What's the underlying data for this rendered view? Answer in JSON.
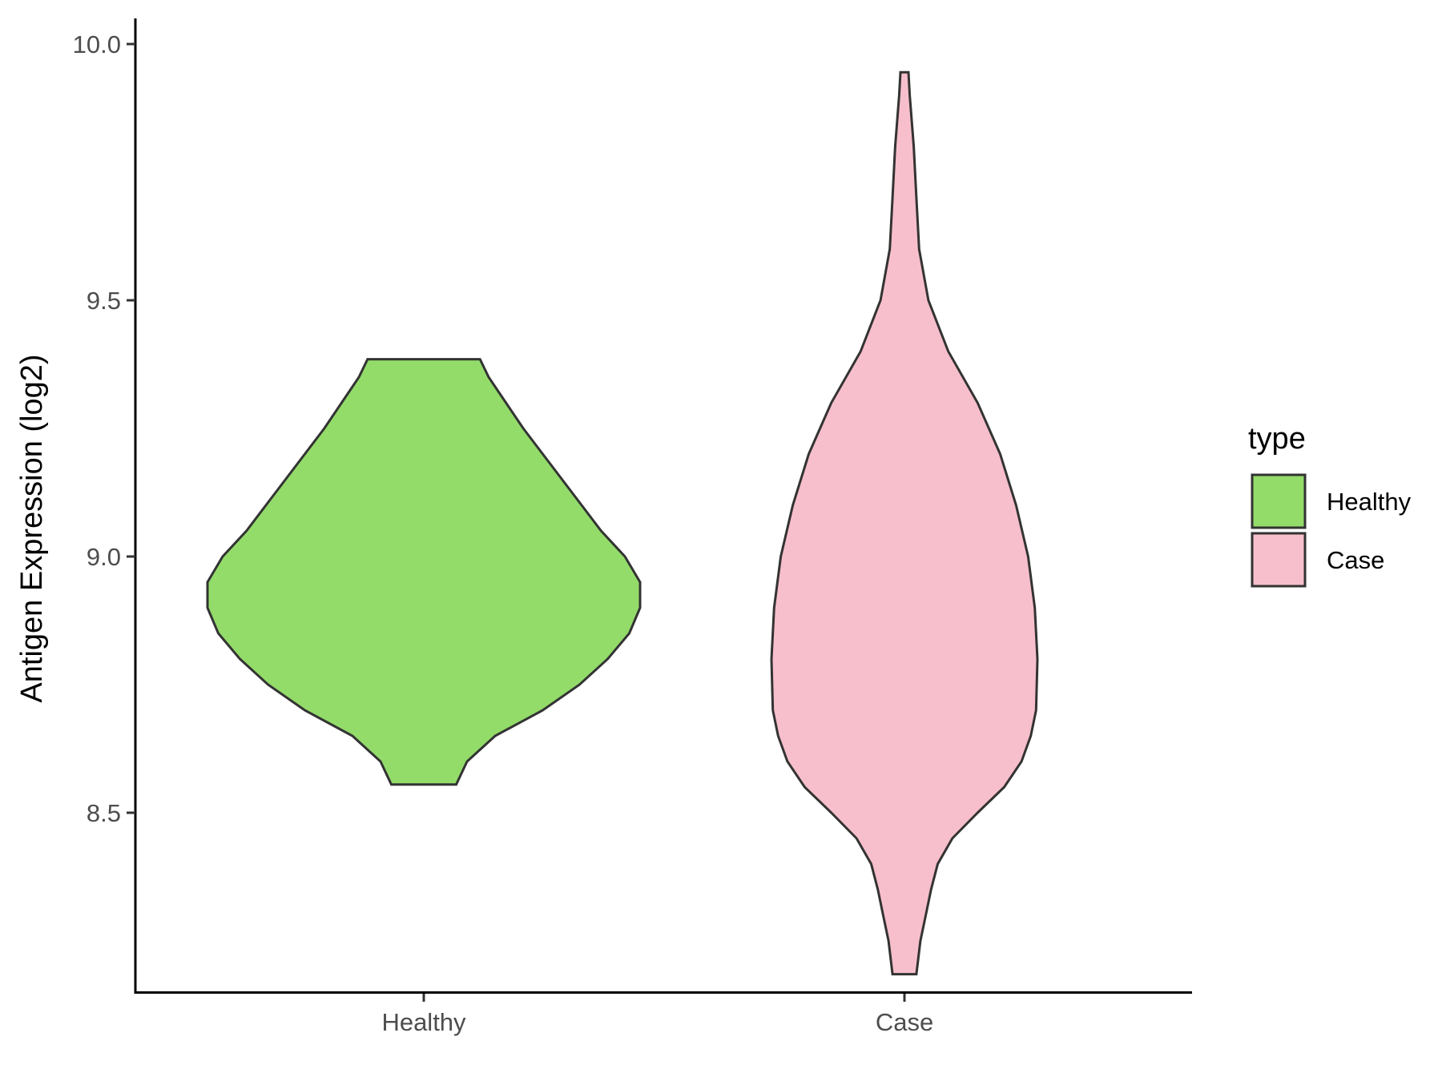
{
  "chart_data": {
    "type": "violin",
    "title": "",
    "xlabel": "",
    "ylabel": "Antigen Expression (log2)",
    "categories": [
      "Healthy",
      "Case"
    ],
    "y_ticks": [
      "8.5",
      "9.0",
      "9.5",
      "10.0"
    ],
    "ylim": [
      8.15,
      10.05
    ],
    "grid": false,
    "legend": {
      "title": "type",
      "placement": "right",
      "entries": [
        {
          "label": "Healthy",
          "color": "#93DC6A"
        },
        {
          "label": "Case",
          "color": "#F7BFCB"
        }
      ]
    },
    "series": [
      {
        "name": "Healthy",
        "color": "#93DC6A",
        "min": 8.555,
        "max": 9.385,
        "density_profile": [
          [
            8.555,
            0.15
          ],
          [
            8.6,
            0.2
          ],
          [
            8.65,
            0.33
          ],
          [
            8.7,
            0.55
          ],
          [
            8.75,
            0.72
          ],
          [
            8.8,
            0.85
          ],
          [
            8.85,
            0.95
          ],
          [
            8.9,
            1.0
          ],
          [
            8.95,
            1.0
          ],
          [
            9.0,
            0.93
          ],
          [
            9.05,
            0.82
          ],
          [
            9.1,
            0.73
          ],
          [
            9.15,
            0.64
          ],
          [
            9.2,
            0.55
          ],
          [
            9.25,
            0.46
          ],
          [
            9.3,
            0.38
          ],
          [
            9.35,
            0.3
          ],
          [
            9.385,
            0.26
          ]
        ]
      },
      {
        "name": "Case",
        "color": "#F7BFCB",
        "min": 8.185,
        "max": 9.945,
        "density_profile": [
          [
            8.185,
            0.09
          ],
          [
            8.25,
            0.12
          ],
          [
            8.3,
            0.16
          ],
          [
            8.35,
            0.2
          ],
          [
            8.4,
            0.25
          ],
          [
            8.45,
            0.36
          ],
          [
            8.5,
            0.55
          ],
          [
            8.55,
            0.75
          ],
          [
            8.6,
            0.88
          ],
          [
            8.65,
            0.95
          ],
          [
            8.7,
            0.99
          ],
          [
            8.8,
            1.0
          ],
          [
            8.9,
            0.98
          ],
          [
            9.0,
            0.93
          ],
          [
            9.1,
            0.84
          ],
          [
            9.2,
            0.72
          ],
          [
            9.3,
            0.55
          ],
          [
            9.4,
            0.33
          ],
          [
            9.5,
            0.18
          ],
          [
            9.6,
            0.11
          ],
          [
            9.7,
            0.09
          ],
          [
            9.8,
            0.07
          ],
          [
            9.9,
            0.04
          ],
          [
            9.945,
            0.03
          ]
        ]
      }
    ]
  }
}
